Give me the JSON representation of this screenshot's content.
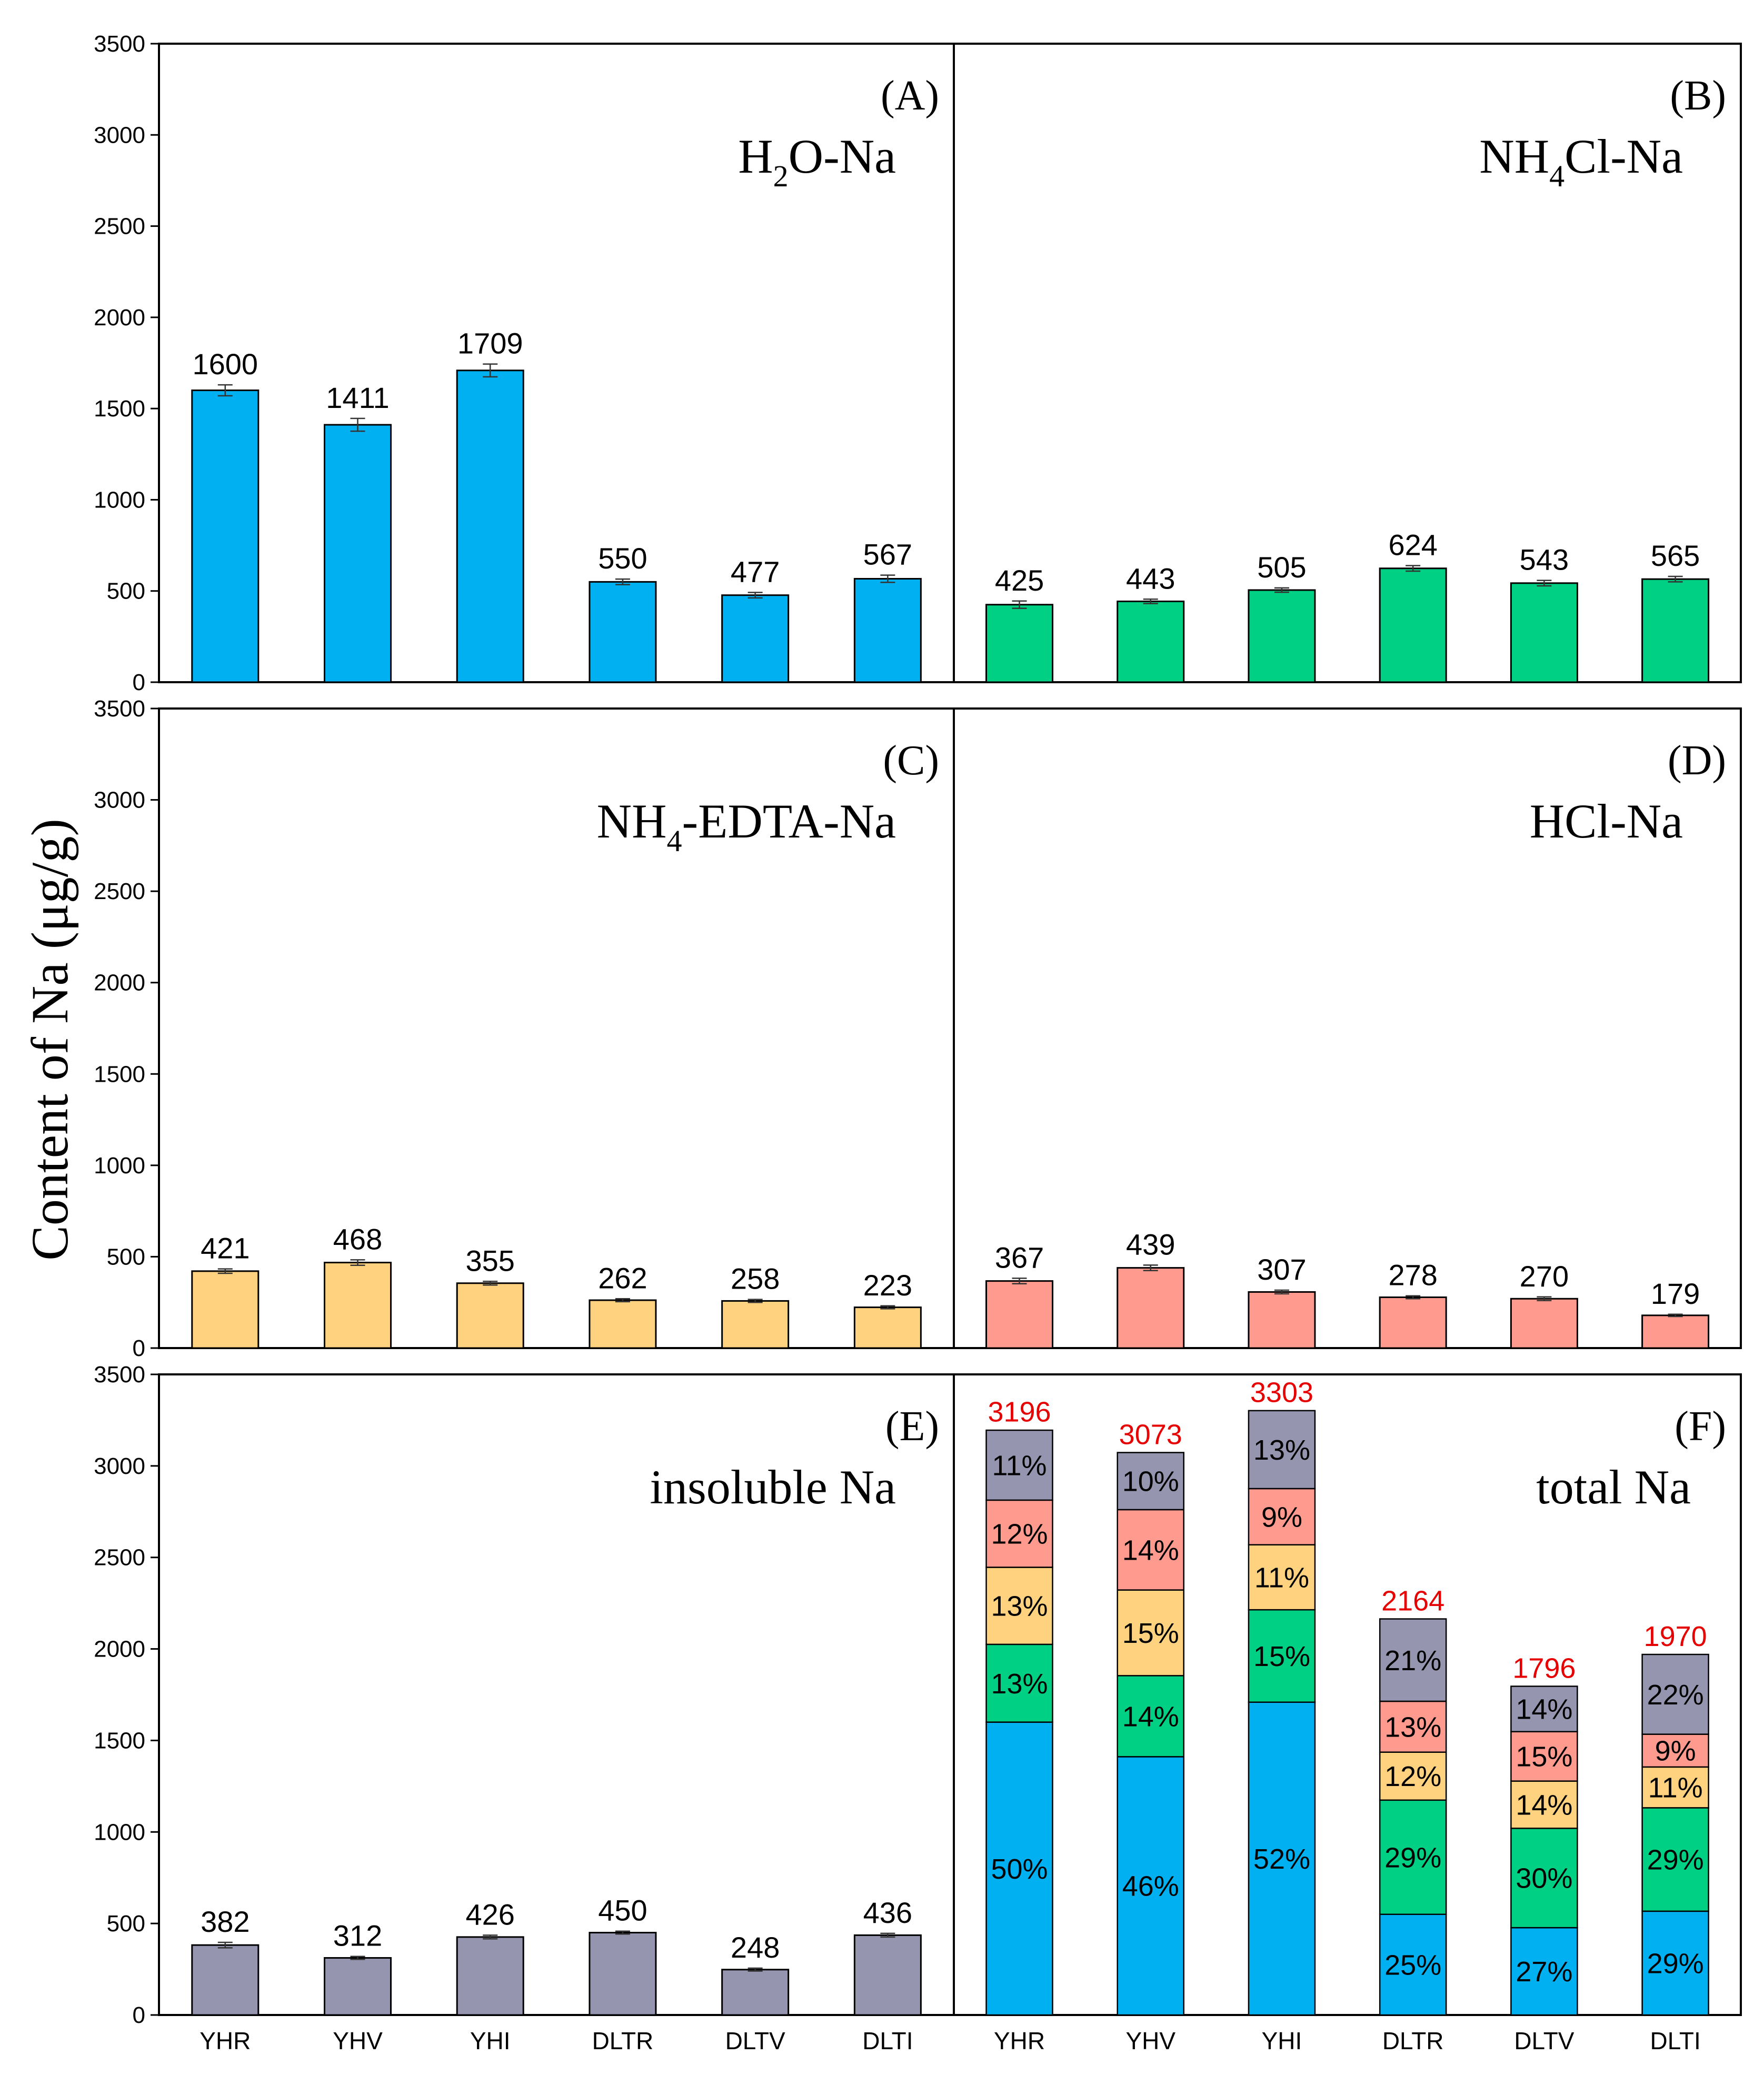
{
  "colors": {
    "H2O": "#00b0f0",
    "NH4Cl": "#00d084",
    "EDTA": "#ffd280",
    "HCl": "#ff9a8e",
    "insoluble": "#9595b0",
    "total_label": "#e60000"
  },
  "chart_data": {
    "type": "bar",
    "ylabel": "Content of Na (μg/g)",
    "ylim": [
      0,
      3500
    ],
    "yticks": [
      "0",
      "500",
      "1000",
      "1500",
      "2000",
      "2500",
      "3000",
      "3500"
    ],
    "categories": [
      "YHR",
      "YHV",
      "YHI",
      "DLTR",
      "DLTV",
      "DLTI"
    ],
    "panels": [
      {
        "letter": "(A)",
        "title_main": "H",
        "title_sub": "2",
        "title_rest": "O-Na",
        "color_key": "H2O",
        "values": [
          1600,
          1411,
          1709,
          550,
          477,
          567
        ],
        "labels": [
          "1600",
          "1411",
          "1709",
          "550",
          "477",
          "567"
        ],
        "errors": [
          30,
          35,
          35,
          15,
          15,
          20
        ]
      },
      {
        "letter": "(B)",
        "title_main": "NH",
        "title_sub": "4",
        "title_rest": "Cl-Na",
        "color_key": "NH4Cl",
        "values": [
          425,
          443,
          505,
          624,
          543,
          565
        ],
        "labels": [
          "425",
          "443",
          "505",
          "624",
          "543",
          "565"
        ],
        "errors": [
          20,
          12,
          12,
          15,
          15,
          15
        ]
      },
      {
        "letter": "(C)",
        "title_main": "NH",
        "title_sub": "4",
        "title_rest": "-EDTA-Na",
        "color_key": "EDTA",
        "values": [
          421,
          468,
          355,
          262,
          258,
          223
        ],
        "labels": [
          "421",
          "468",
          "355",
          "262",
          "258",
          "223"
        ],
        "errors": [
          12,
          15,
          10,
          8,
          8,
          8
        ]
      },
      {
        "letter": "(D)",
        "title_main": "HCl-Na",
        "title_sub": "",
        "title_rest": "",
        "color_key": "HCl",
        "values": [
          367,
          439,
          307,
          278,
          270,
          179
        ],
        "labels": [
          "367",
          "439",
          "307",
          "278",
          "270",
          "179"
        ],
        "errors": [
          15,
          15,
          10,
          8,
          10,
          6
        ]
      },
      {
        "letter": "(E)",
        "title_main": "insoluble Na",
        "title_sub": "",
        "title_rest": "",
        "color_key": "insoluble",
        "values": [
          382,
          312,
          426,
          450,
          248,
          436
        ],
        "labels": [
          "382",
          "312",
          "426",
          "450",
          "248",
          "436"
        ],
        "errors": [
          15,
          8,
          10,
          8,
          8,
          10
        ]
      }
    ],
    "total_panel": {
      "letter": "(F)",
      "title": "total Na",
      "totals": [
        3196,
        3073,
        3303,
        2164,
        1796,
        1970
      ],
      "total_labels": [
        "3196",
        "3073",
        "3303",
        "2164",
        "1796",
        "1970"
      ],
      "stack_order": [
        "H2O",
        "NH4Cl",
        "EDTA",
        "HCl",
        "insoluble"
      ],
      "stacks": [
        [
          1600,
          425,
          421,
          367,
          382
        ],
        [
          1411,
          443,
          468,
          439,
          312
        ],
        [
          1709,
          505,
          355,
          307,
          426
        ],
        [
          550,
          624,
          262,
          278,
          450
        ],
        [
          477,
          543,
          258,
          270,
          248
        ],
        [
          567,
          565,
          223,
          179,
          436
        ]
      ],
      "percents": [
        [
          "50%",
          "13%",
          "13%",
          "12%",
          "11%"
        ],
        [
          "46%",
          "14%",
          "15%",
          "14%",
          "10%"
        ],
        [
          "52%",
          "15%",
          "11%",
          "9%",
          "13%"
        ],
        [
          "25%",
          "29%",
          "12%",
          "13%",
          "21%"
        ],
        [
          "27%",
          "30%",
          "14%",
          "15%",
          "14%"
        ],
        [
          "29%",
          "29%",
          "11%",
          "9%",
          "22%"
        ]
      ]
    }
  }
}
